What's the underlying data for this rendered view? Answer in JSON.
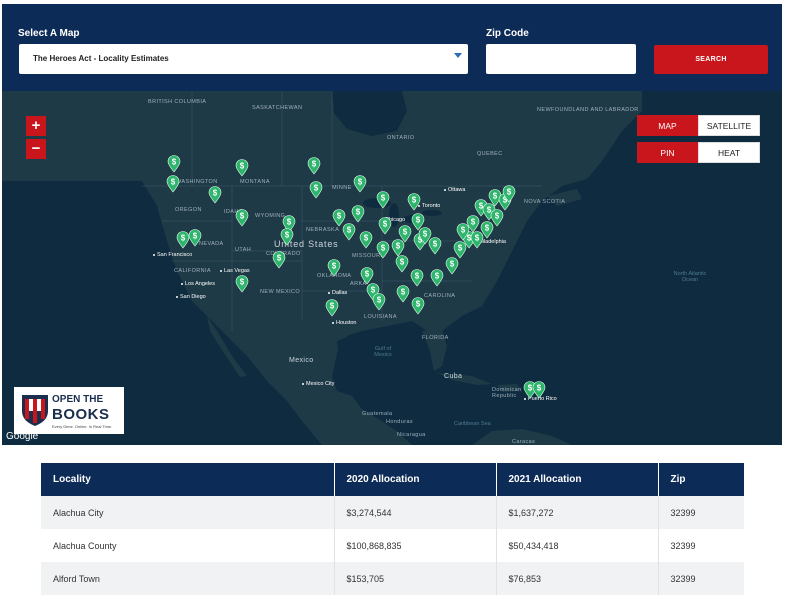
{
  "form": {
    "map_label": "Select A Map",
    "map_selected": "The Heroes Act - Locality Estimates",
    "zip_label": "Zip Code",
    "zip_value": "",
    "search_label": "SEARCH"
  },
  "map": {
    "zoom_in": "+",
    "zoom_out": "−",
    "type_map": "MAP",
    "type_satellite": "SATELLITE",
    "mode_pin": "PIN",
    "mode_heat": "HEAT",
    "pin_symbol": "$",
    "attribution": "Google",
    "labels": {
      "british_columbia": "BRITISH COLUMBIA",
      "saskatchewan": "SASKATCHEWAN",
      "newfoundland": "NEWFOUNDLAND AND LABRADOR",
      "ontario": "ONTARIO",
      "quebec": "QUEBEC",
      "nova_scotia": "NOVA SCOTIA",
      "washington": "WASHINGTON",
      "montana": "MONTANA",
      "oregon": "OREGON",
      "idaho": "IDAHO",
      "wyoming": "WYOMING",
      "nevada": "NEVADA",
      "utah": "UTAH",
      "colorado": "COLORADO",
      "california": "CALIFORNIA",
      "new_mexico": "NEW MEXICO",
      "nebraska": "NEBRASKA",
      "minnesota": "MINNE",
      "missouri": "MISSOURI",
      "oklahoma": "OKLAHOMA",
      "arkansas": "ARKA",
      "louisiana": "LOUISIANA",
      "carolina": "CAROLINA",
      "florida": "FLORIDA",
      "united_states": "United States",
      "mexico": "Mexico",
      "cuba": "Cuba",
      "dominican": "Dominican Republic",
      "guatemala": "Guatemala",
      "honduras": "Honduras",
      "nicaragua": "Nicaragua",
      "caribbean": "Caribbean Sea",
      "gulf": "Gulf of Mexico",
      "north_atlantic": "North Atlantic Ocean",
      "caracas": "Caracas"
    },
    "cities": {
      "ottawa": "Ottawa",
      "toronto": "Toronto",
      "chicago": "Chicago",
      "philadelphia": "Philadelphia",
      "san_francisco": "San Francisco",
      "las_vegas": "Las Vegas",
      "los_angeles": "Los Angeles",
      "san_diego": "San Diego",
      "dallas": "Dallas",
      "houston": "Houston",
      "mexico_city": "Mexico City",
      "puerto_rico": "Puerto Rico"
    }
  },
  "logo": {
    "line1": "OPEN THE",
    "line2": "BOOKS",
    "tagline": "Every Dime. Online. In Real Time."
  },
  "table": {
    "headers": [
      "Locality",
      "2020 Allocation",
      "2021 Allocation",
      "Zip"
    ],
    "rows": [
      [
        "Alachua City",
        "$3,274,544",
        "$1,637,272",
        "32399"
      ],
      [
        "Alachua County",
        "$100,868,835",
        "$50,434,418",
        "32399"
      ],
      [
        "Alford Town",
        "$153,705",
        "$76,853",
        "32399"
      ]
    ]
  },
  "colors": {
    "navy": "#0d2b57",
    "red": "#c8161c",
    "map_water": "#0e2b3f",
    "map_land": "#1f3a47",
    "pin_green": "#2db56c"
  }
}
